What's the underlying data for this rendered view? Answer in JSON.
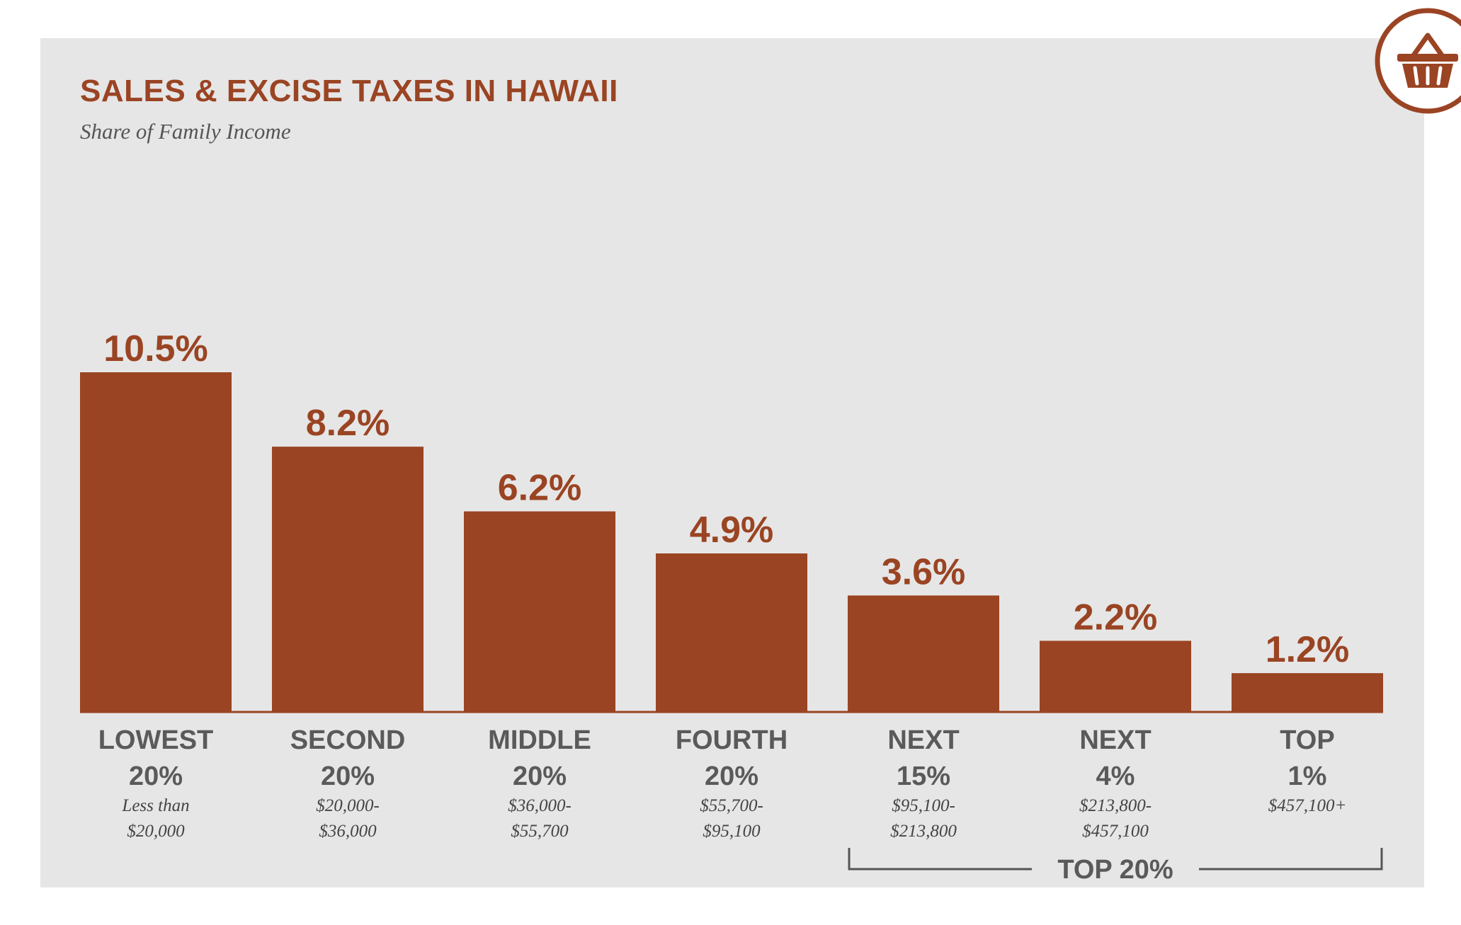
{
  "title": "SALES & EXCISE TAXES IN HAWAII",
  "subtitle": "Share of Family Income",
  "icon": "shopping-basket-icon",
  "colors": {
    "bar": "#9a4423",
    "panel": "#e6e6e6",
    "label": "#5a5a5a",
    "group_line": "#555555"
  },
  "chart_data": {
    "type": "bar",
    "title": "SALES & EXCISE TAXES IN HAWAII",
    "subtitle": "Share of Family Income",
    "categories": [
      {
        "name": [
          "LOWEST",
          "20%"
        ],
        "range": [
          "Less than",
          "$20,000"
        ]
      },
      {
        "name": [
          "SECOND",
          "20%"
        ],
        "range": [
          "$20,000-",
          "$36,000"
        ]
      },
      {
        "name": [
          "MIDDLE",
          "20%"
        ],
        "range": [
          "$36,000-",
          "$55,700"
        ]
      },
      {
        "name": [
          "FOURTH",
          "20%"
        ],
        "range": [
          "$55,700-",
          "$95,100"
        ]
      },
      {
        "name": [
          "NEXT",
          "15%"
        ],
        "range": [
          "$95,100-",
          "$213,800"
        ]
      },
      {
        "name": [
          "NEXT",
          "4%"
        ],
        "range": [
          "$213,800-",
          "$457,100"
        ]
      },
      {
        "name": [
          "TOP",
          "1%"
        ],
        "range": [
          "$457,100+"
        ]
      }
    ],
    "values": [
      10.5,
      8.2,
      6.2,
      4.9,
      3.6,
      2.2,
      1.2
    ],
    "value_labels": [
      "10.5%",
      "8.2%",
      "6.2%",
      "4.9%",
      "3.6%",
      "2.2%",
      "1.2%"
    ],
    "ylim": [
      0,
      10.5
    ],
    "grid": false,
    "group_bracket": {
      "label": "TOP 20%",
      "from_index": 4,
      "to_index": 6
    }
  }
}
